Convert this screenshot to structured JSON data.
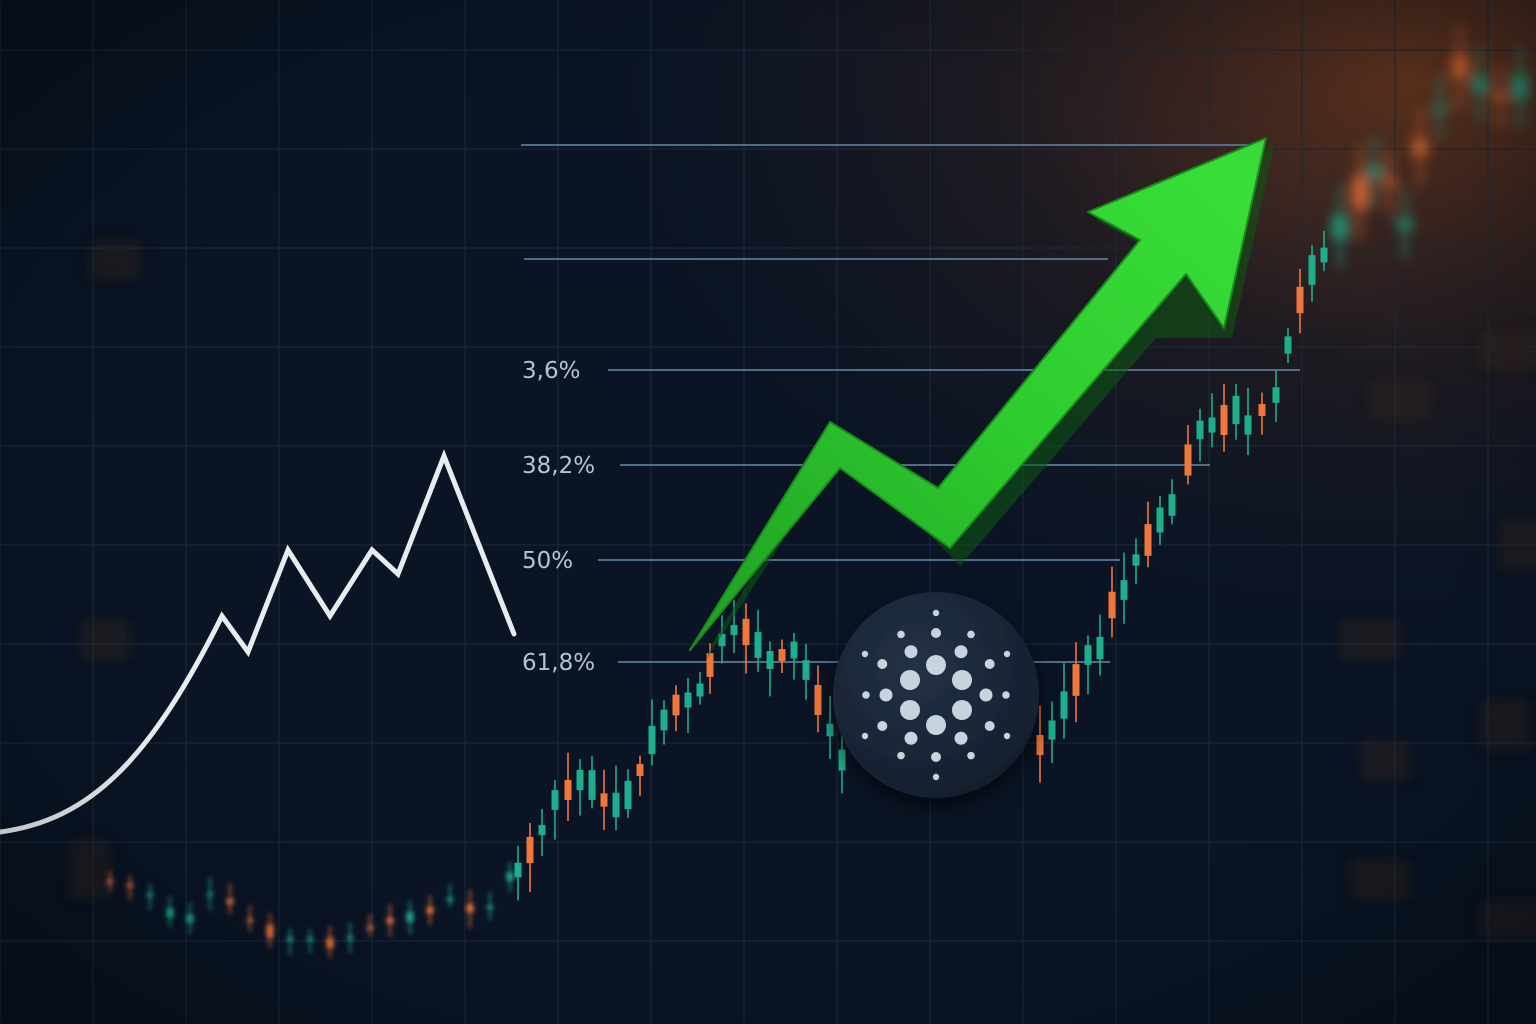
{
  "colors": {
    "background": "#0a1424",
    "grid": "#1b2a3d",
    "level_line": "#5d7d99",
    "candle_up": "#1fae8c",
    "candle_down": "#f0763a",
    "arrow": "#2ecc2e",
    "white_line": "#e9ecef",
    "logo_fill": "#1a2638",
    "logo_dots": "#c9d3de"
  },
  "chart_data": {
    "type": "candlestick",
    "retracement_levels": [
      {
        "label": "",
        "value": 1.0
      },
      {
        "label": "",
        "value": 0.8
      },
      {
        "label": "3,6%",
        "value": 0.6
      },
      {
        "label": "38,2%",
        "value": 0.45
      },
      {
        "label": "50%",
        "value": 0.3
      },
      {
        "label": "61,8%",
        "value": 0.15
      }
    ],
    "logo": "cardano-logo",
    "arrow": "green-up-arrow"
  }
}
